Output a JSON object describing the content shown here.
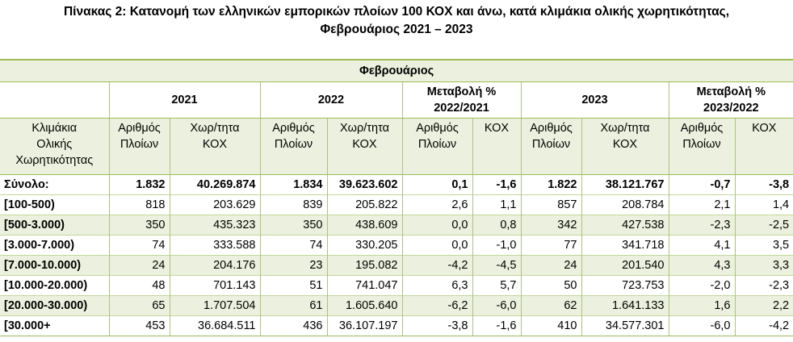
{
  "title": [
    "Πίνακας 2: Κατανομή των ελληνικών εμπορικών πλοίων 100 ΚΟΧ και άνω, κατά κλιμάκια ολικής χωρητικότητας,",
    "Φεβρουάριος 2021 – 2023"
  ],
  "table": {
    "group": "Φεβρουάριος",
    "periods": [
      [
        "2021"
      ],
      [
        "2022"
      ],
      [
        "Μεταβολή %",
        "2022/2021"
      ],
      [
        "2023"
      ],
      [
        "Μεταβολή %",
        "2023/2022"
      ]
    ],
    "columns": [
      [
        "Κλιμάκια",
        "Ολικής",
        "Χωρητικότητας"
      ],
      [
        "Αριθμός",
        "Πλοίων"
      ],
      [
        "Χωρ/τητα",
        "ΚΟΧ"
      ],
      [
        "Αριθμός",
        "Πλοίων"
      ],
      [
        "Χωρ/τητα",
        "ΚΟΧ"
      ],
      [
        "Αριθμός",
        "Πλοίων"
      ],
      [
        "ΚΟΧ"
      ],
      [
        "Αριθμός",
        "Πλοίων"
      ],
      [
        "Χωρ/τητα",
        "ΚΟΧ"
      ],
      [
        "Αριθμός",
        "Πλοίων"
      ],
      [
        "ΚΟΧ"
      ]
    ],
    "rows": [
      [
        "Σύνολο:",
        "1.832",
        "40.269.874",
        "1.834",
        "39.623.602",
        "0,1",
        "-1,6",
        "1.822",
        "38.121.767",
        "-0,7",
        "-3,8"
      ],
      [
        "[100-500)",
        "818",
        "203.629",
        "839",
        "205.822",
        "2,6",
        "1,1",
        "857",
        "208.784",
        "2,1",
        "1,4"
      ],
      [
        "[500-3.000)",
        "350",
        "435.323",
        "350",
        "438.609",
        "0,0",
        "0,8",
        "342",
        "427.538",
        "-2,3",
        "-2,5"
      ],
      [
        "[3.000-7.000)",
        "74",
        "333.588",
        "74",
        "330.205",
        "0,0",
        "-1,0",
        "77",
        "341.718",
        "4,1",
        "3,5"
      ],
      [
        "[7.000-10.000)",
        "24",
        "204.176",
        "23",
        "195.082",
        "-4,2",
        "-4,5",
        "24",
        "201.540",
        "4,3",
        "3,3"
      ],
      [
        "[10.000-20.000)",
        "48",
        "701.143",
        "51",
        "741.047",
        "6,3",
        "5,7",
        "50",
        "723.753",
        "-2,0",
        "-2,3"
      ],
      [
        "[20.000-30.000)",
        "65",
        "1.707.504",
        "61",
        "1.605.640",
        "-6,2",
        "-6,0",
        "62",
        "1.641.133",
        "1,6",
        "2,2"
      ],
      [
        "[30.000+",
        "453",
        "36.684.511",
        "436",
        "36.107.197",
        "-3,8",
        "-1,6",
        "410",
        "34.577.301",
        "-6,0",
        "-4,2"
      ]
    ]
  }
}
